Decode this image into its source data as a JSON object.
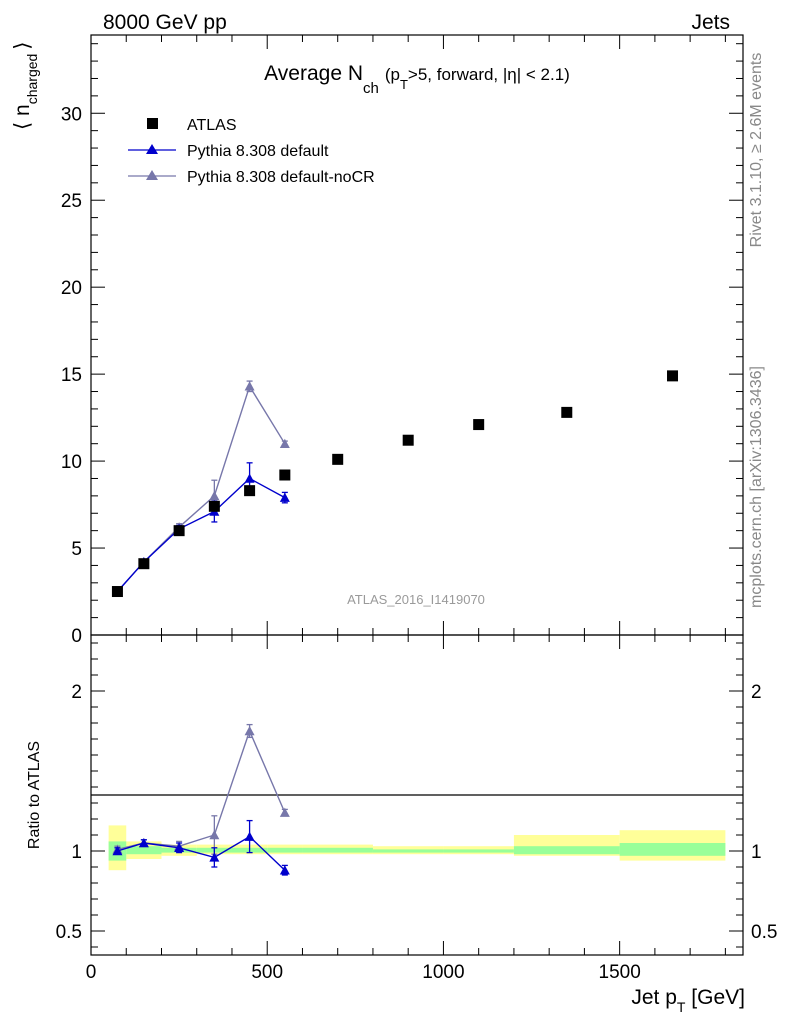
{
  "header": {
    "left": "8000 GeV pp",
    "right": "Jets"
  },
  "side_labels": {
    "rivet": "Rivet 3.1.10, ≥ 2.6M events",
    "mcplots": "mcplots.cern.ch [arXiv:1306.3436]"
  },
  "chart_data": [
    {
      "type": "scatter",
      "title": {
        "main": "Average N",
        "main_sub": "ch",
        "cond_a": "(p",
        "cond_a_sub": "T",
        "cond_b": ">5, forward, |η| < 2.1)"
      },
      "ylabel": {
        "pre": "⟨ n",
        "sub": "charged",
        "post": "⟩"
      },
      "watermark": "ATLAS_2016_I1419070",
      "xlim": [
        0,
        1850
      ],
      "ylim": [
        0,
        34.5
      ],
      "yticks": [
        "0",
        "5",
        "10",
        "15",
        "20",
        "25",
        "30"
      ],
      "ytick_values": [
        0,
        5,
        10,
        15,
        20,
        25,
        30
      ],
      "legend_position": "top-left",
      "series": [
        {
          "name": "ATLAS",
          "color": "#000000",
          "marker": "square",
          "x": [
            75,
            150,
            250,
            350,
            450,
            550,
            700,
            900,
            1100,
            1350,
            1650
          ],
          "y": [
            2.5,
            4.1,
            6.0,
            7.4,
            8.3,
            9.2,
            10.1,
            11.2,
            12.1,
            12.8,
            14.9
          ]
        },
        {
          "name": "Pythia 8.308 default",
          "color": "#0000cc",
          "marker": "triangle",
          "x": [
            75,
            150,
            250,
            350,
            450,
            550
          ],
          "y": [
            2.5,
            4.2,
            6.1,
            7.1,
            9.0,
            7.9
          ],
          "err": [
            0.1,
            0.1,
            0.2,
            0.6,
            0.9,
            0.3
          ]
        },
        {
          "name": "Pythia 8.308 default-noCR",
          "color": "#7777aa",
          "marker": "triangle",
          "x": [
            75,
            150,
            250,
            350,
            450,
            550
          ],
          "y": [
            2.5,
            4.2,
            6.2,
            8.0,
            14.3,
            11.0
          ],
          "err": [
            0.1,
            0.1,
            0.2,
            0.9,
            0.3,
            0.15
          ]
        }
      ]
    },
    {
      "type": "scatter",
      "ylabel": "Ratio to ATLAS",
      "xlabel": {
        "pre": "Jet p",
        "sub": "T",
        "post": " [GeV]"
      },
      "xlim": [
        0,
        1850
      ],
      "ylim": [
        0.35,
        2.35
      ],
      "xticks": [
        "0",
        "500",
        "1000",
        "1500"
      ],
      "xtick_values": [
        0,
        500,
        1000,
        1500
      ],
      "yticks": [
        "0.5",
        "1",
        "2"
      ],
      "ytick_values": [
        0.5,
        1,
        2
      ],
      "bands": {
        "bins": [
          [
            50,
            100
          ],
          [
            100,
            200
          ],
          [
            200,
            300
          ],
          [
            300,
            400
          ],
          [
            400,
            500
          ],
          [
            500,
            600
          ],
          [
            600,
            800
          ],
          [
            800,
            1000
          ],
          [
            1000,
            1200
          ],
          [
            1200,
            1500
          ],
          [
            1500,
            1800
          ]
        ],
        "inner": [
          [
            0.94,
            1.06
          ],
          [
            0.98,
            1.03
          ],
          [
            0.99,
            1.02
          ],
          [
            0.99,
            1.02
          ],
          [
            0.99,
            1.02
          ],
          [
            0.99,
            1.02
          ],
          [
            0.99,
            1.02
          ],
          [
            0.99,
            1.01
          ],
          [
            0.99,
            1.01
          ],
          [
            0.98,
            1.03
          ],
          [
            0.97,
            1.05
          ]
        ],
        "outer": [
          [
            0.88,
            1.16
          ],
          [
            0.95,
            1.06
          ],
          [
            0.97,
            1.04
          ],
          [
            0.98,
            1.04
          ],
          [
            0.98,
            1.04
          ],
          [
            0.98,
            1.04
          ],
          [
            0.98,
            1.04
          ],
          [
            0.98,
            1.03
          ],
          [
            0.98,
            1.03
          ],
          [
            0.97,
            1.1
          ],
          [
            0.94,
            1.13
          ]
        ],
        "inner_color": "#99ff99",
        "outer_color": "#ffff99"
      },
      "series": [
        {
          "name": "Pythia 8.308 default",
          "color": "#0000cc",
          "x": [
            75,
            150,
            250,
            350,
            450,
            550
          ],
          "y": [
            1.0,
            1.05,
            1.02,
            0.96,
            1.09,
            0.88
          ],
          "err": [
            0.02,
            0.02,
            0.03,
            0.06,
            0.1,
            0.03
          ]
        },
        {
          "name": "Pythia 8.308 default-noCR",
          "color": "#7777aa",
          "x": [
            75,
            150,
            250,
            350,
            450,
            550
          ],
          "y": [
            1.01,
            1.05,
            1.03,
            1.1,
            1.75,
            1.24
          ],
          "err": [
            0.02,
            0.02,
            0.03,
            0.12,
            0.04,
            0.02
          ]
        }
      ]
    }
  ]
}
